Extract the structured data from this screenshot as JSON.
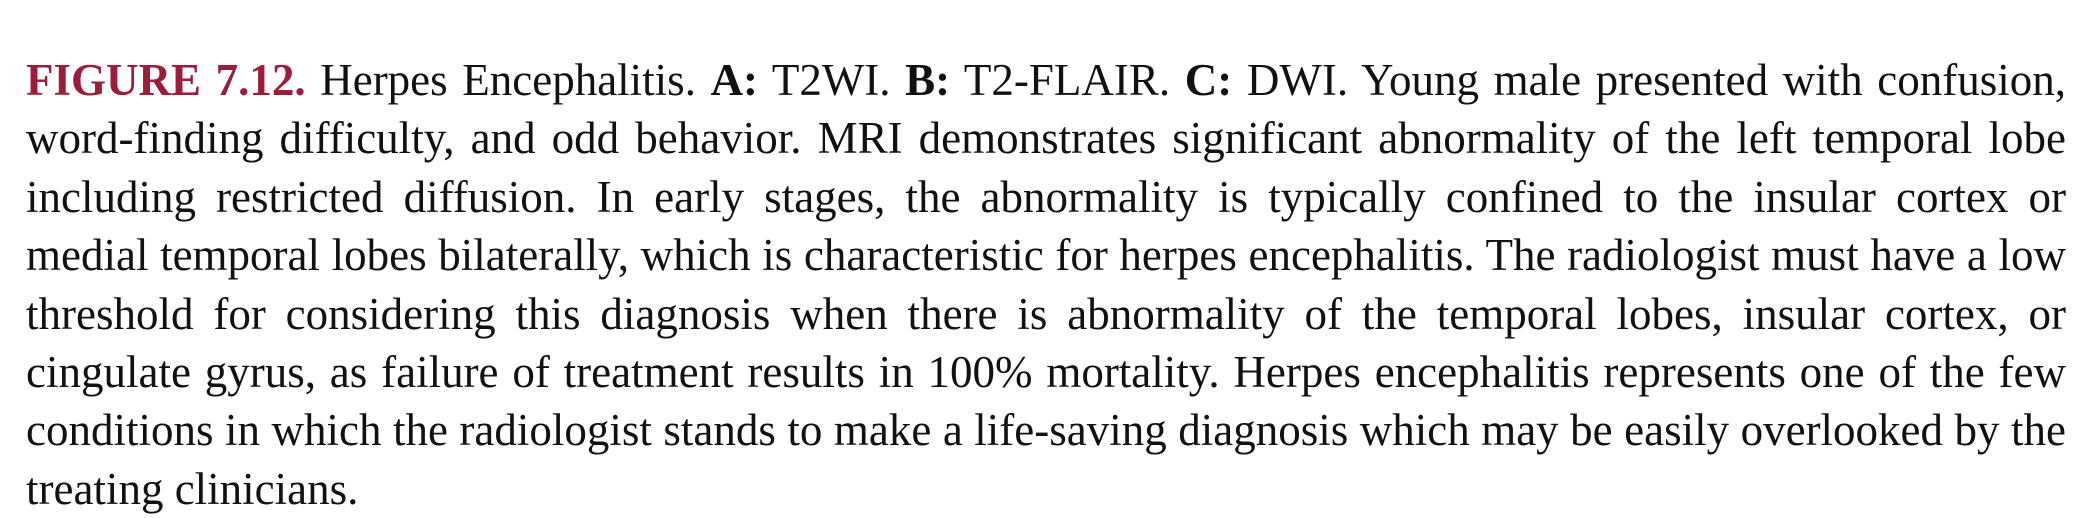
{
  "caption": {
    "figure_label": "FIGURE 7.12.",
    "title": " Herpes Encephalitis. ",
    "panel_a_label": "A:",
    "panel_a_text": " T2WI. ",
    "panel_b_label": "B:",
    "panel_b_text": " T2-FLAIR. ",
    "panel_c_label": "C:",
    "panel_c_text": " DWI. ",
    "body": "Young male presented with confusion, word-finding difficulty, and odd behavior. MRI demonstrates significant abnormality of the left temporal lobe including restricted diffusion. In early stages, the abnormality is typically confined to the insular cortex or medial temporal lobes bilaterally, which is characteristic for herpes encephalitis. The radiologist must have a low threshold for considering this diagnosis when there is abnormality of the temporal lobes, insular cortex, or cingulate gyrus, as failure of treatment results in 100% mortality. Herpes encephalitis represents one of the few conditions in which the radiologist stands to make a life-­saving diagnosis which may be easily overlooked by the treating clinicians."
  },
  "colors": {
    "figure_label": "#9b1c3b",
    "text": "#111111",
    "background": "#ffffff"
  }
}
